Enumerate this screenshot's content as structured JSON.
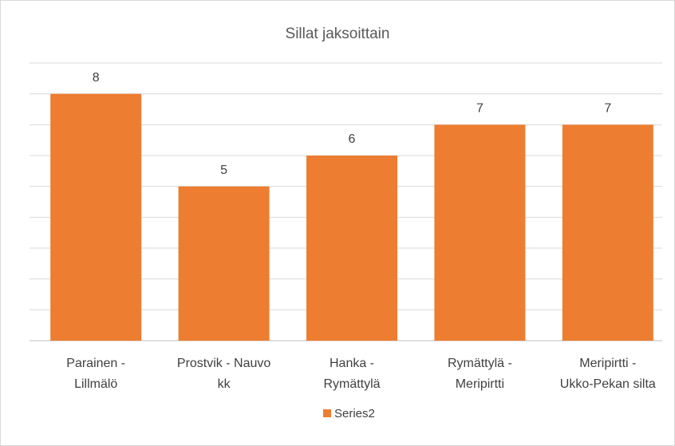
{
  "chart_data": {
    "type": "bar",
    "title": "Sillat jaksoittain",
    "categories": [
      "Parainen -\nLillmälö",
      "Prostvik - Nauvo\nkk",
      "Hanka -\nRymättylä",
      "Rymättylä -\nMeripirtti",
      "Meripirtti -\nUkko-Pekan silta"
    ],
    "series": [
      {
        "name": "Series2",
        "color": "#ed7d31",
        "values": [
          8,
          5,
          6,
          7,
          7
        ]
      }
    ],
    "ylim": [
      0,
      9
    ],
    "yticks": [
      0,
      1,
      2,
      3,
      4,
      5,
      6,
      7,
      8,
      9
    ],
    "grid": true,
    "legend": "bottom"
  }
}
